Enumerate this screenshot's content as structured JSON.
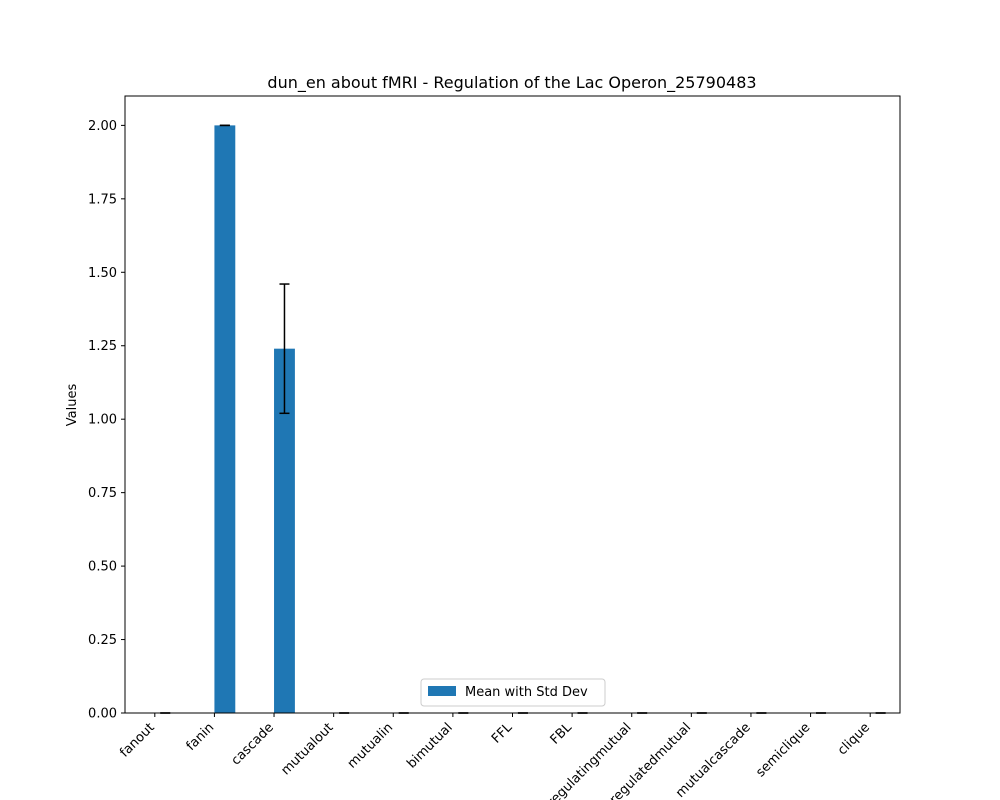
{
  "chart_data": {
    "type": "bar",
    "title": "dun_en about fMRI - Regulation of the Lac Operon_25790483",
    "xlabel": "",
    "ylabel": "Values",
    "ylim": [
      0,
      2.1
    ],
    "yticks": [
      "0.00",
      "0.25",
      "0.50",
      "0.75",
      "1.00",
      "1.25",
      "1.50",
      "1.75",
      "2.00"
    ],
    "categories": [
      "fanout",
      "fanin",
      "cascade",
      "mutualout",
      "mutualin",
      "bimutual",
      "FFL",
      "FBL",
      "regulatingmutual",
      "regulatedmutual",
      "mutualcascade",
      "semiclique",
      "clique"
    ],
    "series": [
      {
        "name": "Mean with Std Dev",
        "color": "#1f77b4",
        "values": [
          0,
          2.0,
          1.24,
          0,
          0,
          0,
          0,
          0,
          0,
          0,
          0,
          0,
          0
        ],
        "errors": [
          0,
          0,
          0.22,
          0,
          0,
          0,
          0,
          0,
          0,
          0,
          0,
          0,
          0
        ]
      }
    ],
    "legend_position": "lower-center",
    "grid": false
  }
}
